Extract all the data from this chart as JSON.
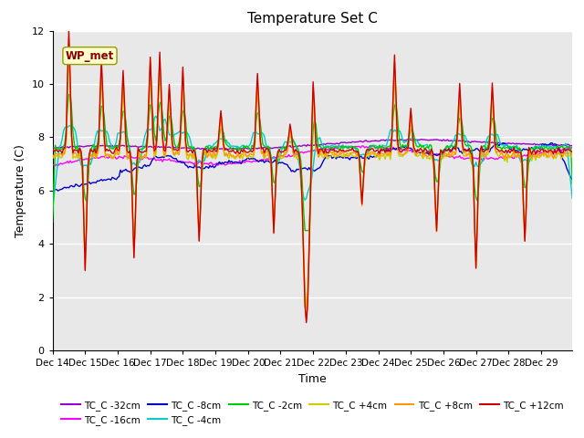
{
  "title": "Temperature Set C",
  "xlabel": "Time",
  "ylabel": "Temperature (C)",
  "ylim": [
    0,
    12
  ],
  "yticks": [
    0,
    2,
    4,
    6,
    8,
    10,
    12
  ],
  "x_labels": [
    "Dec 14",
    "Dec 15",
    "Dec 16",
    "Dec 17",
    "Dec 18",
    "Dec 19",
    "Dec 20",
    "Dec 21",
    "Dec 22",
    "Dec 23",
    "Dec 24",
    "Dec 25",
    "Dec 26",
    "Dec 27",
    "Dec 28",
    "Dec 29"
  ],
  "annotation_text": "WP_met",
  "annotation_bg": "#ffffcc",
  "annotation_border": "#999900",
  "annotation_color": "#880000",
  "bg_color": "#e8e8e8",
  "legend_entries": [
    {
      "label": "TC_C -32cm",
      "color": "#9900cc"
    },
    {
      "label": "TC_C -16cm",
      "color": "#ff00ff"
    },
    {
      "label": "TC_C -8cm",
      "color": "#0000cc"
    },
    {
      "label": "TC_C -4cm",
      "color": "#00cccc"
    },
    {
      "label": "TC_C -2cm",
      "color": "#00cc00"
    },
    {
      "label": "TC_C +4cm",
      "color": "#cccc00"
    },
    {
      "label": "TC_C +8cm",
      "color": "#ff9900"
    },
    {
      "label": "TC_C +12cm",
      "color": "#cc0000"
    }
  ]
}
